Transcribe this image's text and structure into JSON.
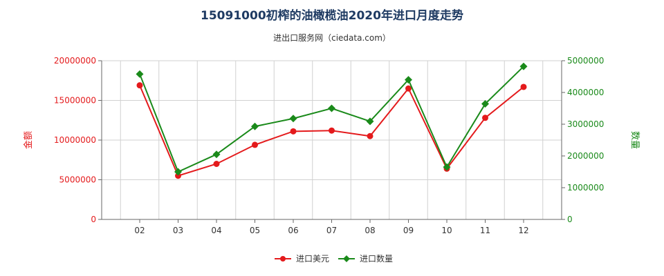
{
  "colors": {
    "usd": "#e41a1c",
    "qty": "#1a8a1a",
    "title": "#1f3b63",
    "grid": "#d0d0d0",
    "axis": "#666666"
  },
  "chart_data": {
    "type": "line",
    "title": "15091000初榨的油橄榄油2020年进口月度走势",
    "subtitle": "进出口服务网（ciedata.com）",
    "categories": [
      "02",
      "03",
      "04",
      "05",
      "06",
      "07",
      "08",
      "09",
      "10",
      "11",
      "12"
    ],
    "y_left": {
      "label": "金额",
      "range": [
        0,
        20000000
      ],
      "ticks": [
        "0",
        "5000000",
        "10000000",
        "15000000",
        "20000000"
      ],
      "tick_values": [
        0,
        5000000,
        10000000,
        15000000,
        20000000
      ]
    },
    "y_right": {
      "label": "数量",
      "range": [
        0,
        5000000
      ],
      "ticks": [
        "0",
        "1000000",
        "2000000",
        "3000000",
        "4000000",
        "5000000"
      ],
      "tick_values": [
        0,
        1000000,
        2000000,
        3000000,
        4000000,
        5000000
      ]
    },
    "series": [
      {
        "name": "进口美元",
        "axis": "left",
        "marker": "circle",
        "values": [
          16900000,
          5500000,
          7000000,
          9400000,
          11100000,
          11200000,
          10500000,
          16500000,
          6400000,
          12800000,
          16700000
        ]
      },
      {
        "name": "进口数量",
        "axis": "right",
        "marker": "diamond",
        "values": [
          4580000,
          1500000,
          2050000,
          2930000,
          3180000,
          3500000,
          3090000,
          4400000,
          1650000,
          3640000,
          4820000
        ]
      }
    ],
    "grid": true,
    "legend_position": "bottom-center"
  }
}
